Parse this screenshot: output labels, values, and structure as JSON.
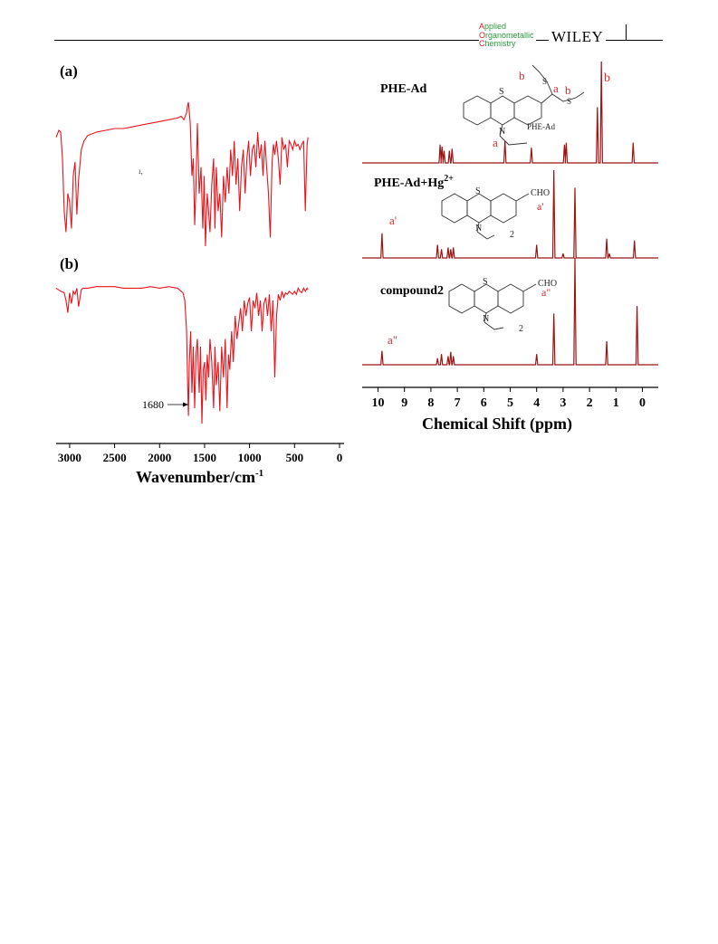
{
  "header": {
    "journal_lines": [
      {
        "initial": "A",
        "rest": "pplied"
      },
      {
        "initial": "O",
        "rest": "rganometallic"
      },
      {
        "initial": "C",
        "rest": "hemistry"
      }
    ],
    "publisher": "WILEY"
  },
  "colors": {
    "ir_trace": "#e8141c",
    "nmr_trace": "#9c1414",
    "annotation": "#d42a2a",
    "journal_green": "#2e9a3c",
    "journal_red": "#d2232a"
  },
  "ir_panel": {
    "label_a": "(a)",
    "label_b": "(b)",
    "stray_mark": "ı,",
    "marker_label": "1680",
    "x_ticks": [
      "3000",
      "2500",
      "2000",
      "1500",
      "1000",
      "500",
      "0"
    ],
    "x_axis_label": "Wavenumber/cm",
    "x_axis_superscript": "-1"
  },
  "nmr_panel": {
    "spectra": [
      {
        "label": "PHE-Ad",
        "structure_ring_atoms": [
          "S",
          "N"
        ],
        "structure_caption": "PHE-Ad",
        "structure_labels": [
          "a",
          "b",
          "a",
          "b"
        ],
        "peak_label": "b"
      },
      {
        "label": "PHE-Ad+Hg",
        "label_superscript": "2+",
        "structure_ring_atoms": [
          "S",
          "N"
        ],
        "substituent": "CHO",
        "structure_labels": [
          "a'",
          "2"
        ],
        "peak_label": "a'"
      },
      {
        "label": "compound2",
        "structure_ring_atoms": [
          "S",
          "N"
        ],
        "substituent": "CHO",
        "structure_labels": [
          "a\"",
          "2"
        ],
        "peak_label": "a\""
      }
    ],
    "x_ticks": [
      "10",
      "9",
      "8",
      "7",
      "6",
      "5",
      "4",
      "3",
      "2",
      "1",
      "0"
    ],
    "x_axis_label": "Chemical Shift (ppm)"
  },
  "chart_data": [
    {
      "type": "line",
      "title": "",
      "panel": "(a)",
      "xlabel": "Wavenumber/cm-1",
      "xlim": [
        3150,
        0
      ],
      "x_reversed": true,
      "series": [
        {
          "x": [
            3150,
            3120,
            3100,
            3080,
            3060,
            3040,
            3020,
            3000,
            2980,
            2960,
            2940,
            2920,
            2900,
            2870,
            2840,
            2800,
            2700,
            2600,
            2500,
            2400,
            2300,
            2200,
            2100,
            2000,
            1900,
            1800,
            1760,
            1730,
            1700,
            1690,
            1680,
            1660,
            1640,
            1625,
            1610,
            1595,
            1580,
            1560,
            1540,
            1520,
            1505,
            1490,
            1470,
            1455,
            1440,
            1420,
            1400,
            1385,
            1370,
            1350,
            1330,
            1310,
            1290,
            1270,
            1250,
            1230,
            1210,
            1190,
            1170,
            1150,
            1130,
            1110,
            1090,
            1070,
            1050,
            1030,
            1010,
            990,
            970,
            950,
            930,
            910,
            890,
            870,
            850,
            830,
            810,
            790,
            770,
            750,
            735,
            720,
            700,
            680,
            660,
            640,
            620,
            600,
            580,
            560,
            540,
            520,
            500,
            480,
            460,
            440,
            420,
            400,
            380,
            360,
            350
          ],
          "y": [
            62,
            66,
            65,
            50,
            20,
            8,
            30,
            25,
            10,
            40,
            48,
            18,
            38,
            55,
            60,
            63,
            65,
            66,
            67,
            67,
            68,
            69,
            70,
            71,
            72,
            73,
            74,
            72,
            76,
            80,
            82,
            70,
            40,
            50,
            12,
            35,
            70,
            30,
            45,
            10,
            40,
            0,
            30,
            20,
            8,
            35,
            50,
            10,
            45,
            20,
            30,
            5,
            40,
            25,
            45,
            30,
            55,
            40,
            60,
            35,
            50,
            20,
            45,
            55,
            30,
            50,
            60,
            40,
            55,
            58,
            45,
            65,
            50,
            58,
            40,
            60,
            45,
            30,
            5,
            48,
            58,
            52,
            60,
            50,
            35,
            62,
            55,
            58,
            45,
            60,
            58,
            55,
            60,
            57,
            58,
            55,
            58,
            60,
            20,
            58,
            62
          ]
        }
      ]
    },
    {
      "type": "line",
      "title": "",
      "panel": "(b)",
      "xlabel": "Wavenumber/cm-1",
      "xlim": [
        3150,
        0
      ],
      "x_reversed": true,
      "annotations": [
        {
          "x": 1680,
          "text": "1680"
        }
      ],
      "series": [
        {
          "x": [
            3150,
            3100,
            3060,
            3040,
            3020,
            3000,
            2980,
            2960,
            2940,
            2920,
            2900,
            2870,
            2850,
            2800,
            2700,
            2600,
            2500,
            2400,
            2300,
            2200,
            2100,
            2000,
            1900,
            1800,
            1760,
            1740,
            1720,
            1700,
            1690,
            1680,
            1670,
            1655,
            1640,
            1625,
            1610,
            1595,
            1580,
            1560,
            1545,
            1530,
            1515,
            1500,
            1485,
            1470,
            1455,
            1440,
            1420,
            1400,
            1385,
            1370,
            1350,
            1330,
            1310,
            1290,
            1270,
            1250,
            1235,
            1220,
            1200,
            1180,
            1160,
            1140,
            1120,
            1100,
            1080,
            1060,
            1040,
            1020,
            1000,
            980,
            960,
            940,
            920,
            900,
            880,
            860,
            840,
            820,
            800,
            780,
            760,
            740,
            720,
            700,
            680,
            660,
            640,
            620,
            600,
            580,
            560,
            540,
            520,
            500,
            480,
            460,
            440,
            420,
            400,
            380,
            360,
            350
          ],
          "y": [
            88,
            86,
            85,
            80,
            72,
            85,
            78,
            86,
            84,
            88,
            76,
            87,
            88,
            88,
            89,
            89,
            89,
            88,
            88,
            88,
            89,
            88,
            89,
            88,
            86,
            85,
            80,
            60,
            30,
            5,
            40,
            60,
            20,
            50,
            10,
            45,
            55,
            20,
            50,
            0,
            35,
            40,
            15,
            45,
            30,
            55,
            40,
            10,
            50,
            25,
            40,
            8,
            50,
            30,
            55,
            10,
            45,
            35,
            60,
            40,
            70,
            55,
            65,
            75,
            60,
            80,
            70,
            78,
            82,
            60,
            80,
            75,
            85,
            70,
            80,
            60,
            78,
            82,
            70,
            84,
            60,
            80,
            30,
            70,
            84,
            80,
            86,
            82,
            85,
            84,
            86,
            85,
            84,
            86,
            84,
            88,
            86,
            85,
            88,
            86,
            88,
            87
          ]
        }
      ]
    },
    {
      "type": "line",
      "title": "",
      "xlabel": "Chemical Shift (ppm)",
      "xlim": [
        10.6,
        -0.6
      ],
      "x_reversed": true,
      "series": [
        {
          "name": "PHE-Ad",
          "peaks": [
            {
              "ppm": 7.65,
              "h": 0.18
            },
            {
              "ppm": 7.58,
              "h": 0.16
            },
            {
              "ppm": 7.5,
              "h": 0.12
            },
            {
              "ppm": 7.3,
              "h": 0.12
            },
            {
              "ppm": 7.2,
              "h": 0.14
            },
            {
              "ppm": 5.2,
              "h": 0.22
            },
            {
              "ppm": 4.2,
              "h": 0.15
            },
            {
              "ppm": 2.95,
              "h": 0.18
            },
            {
              "ppm": 2.88,
              "h": 0.2
            },
            {
              "ppm": 1.7,
              "h": 0.55
            },
            {
              "ppm": 1.55,
              "h": 1.0
            },
            {
              "ppm": 0.35,
              "h": 0.2
            }
          ]
        },
        {
          "name": "PHE-Ad+Hg2+",
          "peaks": [
            {
              "ppm": 9.85,
              "h": 0.28
            },
            {
              "ppm": 7.75,
              "h": 0.15
            },
            {
              "ppm": 7.6,
              "h": 0.1
            },
            {
              "ppm": 7.35,
              "h": 0.12
            },
            {
              "ppm": 7.25,
              "h": 0.1
            },
            {
              "ppm": 7.15,
              "h": 0.12
            },
            {
              "ppm": 4.0,
              "h": 0.15
            },
            {
              "ppm": 3.35,
              "h": 1.0
            },
            {
              "ppm": 3.0,
              "h": 0.05
            },
            {
              "ppm": 2.55,
              "h": 0.8
            },
            {
              "ppm": 1.35,
              "h": 0.22
            },
            {
              "ppm": 1.25,
              "h": 0.05
            },
            {
              "ppm": 0.3,
              "h": 0.2
            }
          ]
        },
        {
          "name": "compound2",
          "peaks": [
            {
              "ppm": 9.85,
              "h": 0.13
            },
            {
              "ppm": 7.75,
              "h": 0.06
            },
            {
              "ppm": 7.6,
              "h": 0.1
            },
            {
              "ppm": 7.35,
              "h": 0.08
            },
            {
              "ppm": 7.25,
              "h": 0.12
            },
            {
              "ppm": 7.15,
              "h": 0.08
            },
            {
              "ppm": 4.0,
              "h": 0.1
            },
            {
              "ppm": 3.35,
              "h": 0.48
            },
            {
              "ppm": 2.55,
              "h": 1.0
            },
            {
              "ppm": 1.35,
              "h": 0.22
            },
            {
              "ppm": 0.2,
              "h": 0.55
            }
          ]
        }
      ]
    }
  ]
}
